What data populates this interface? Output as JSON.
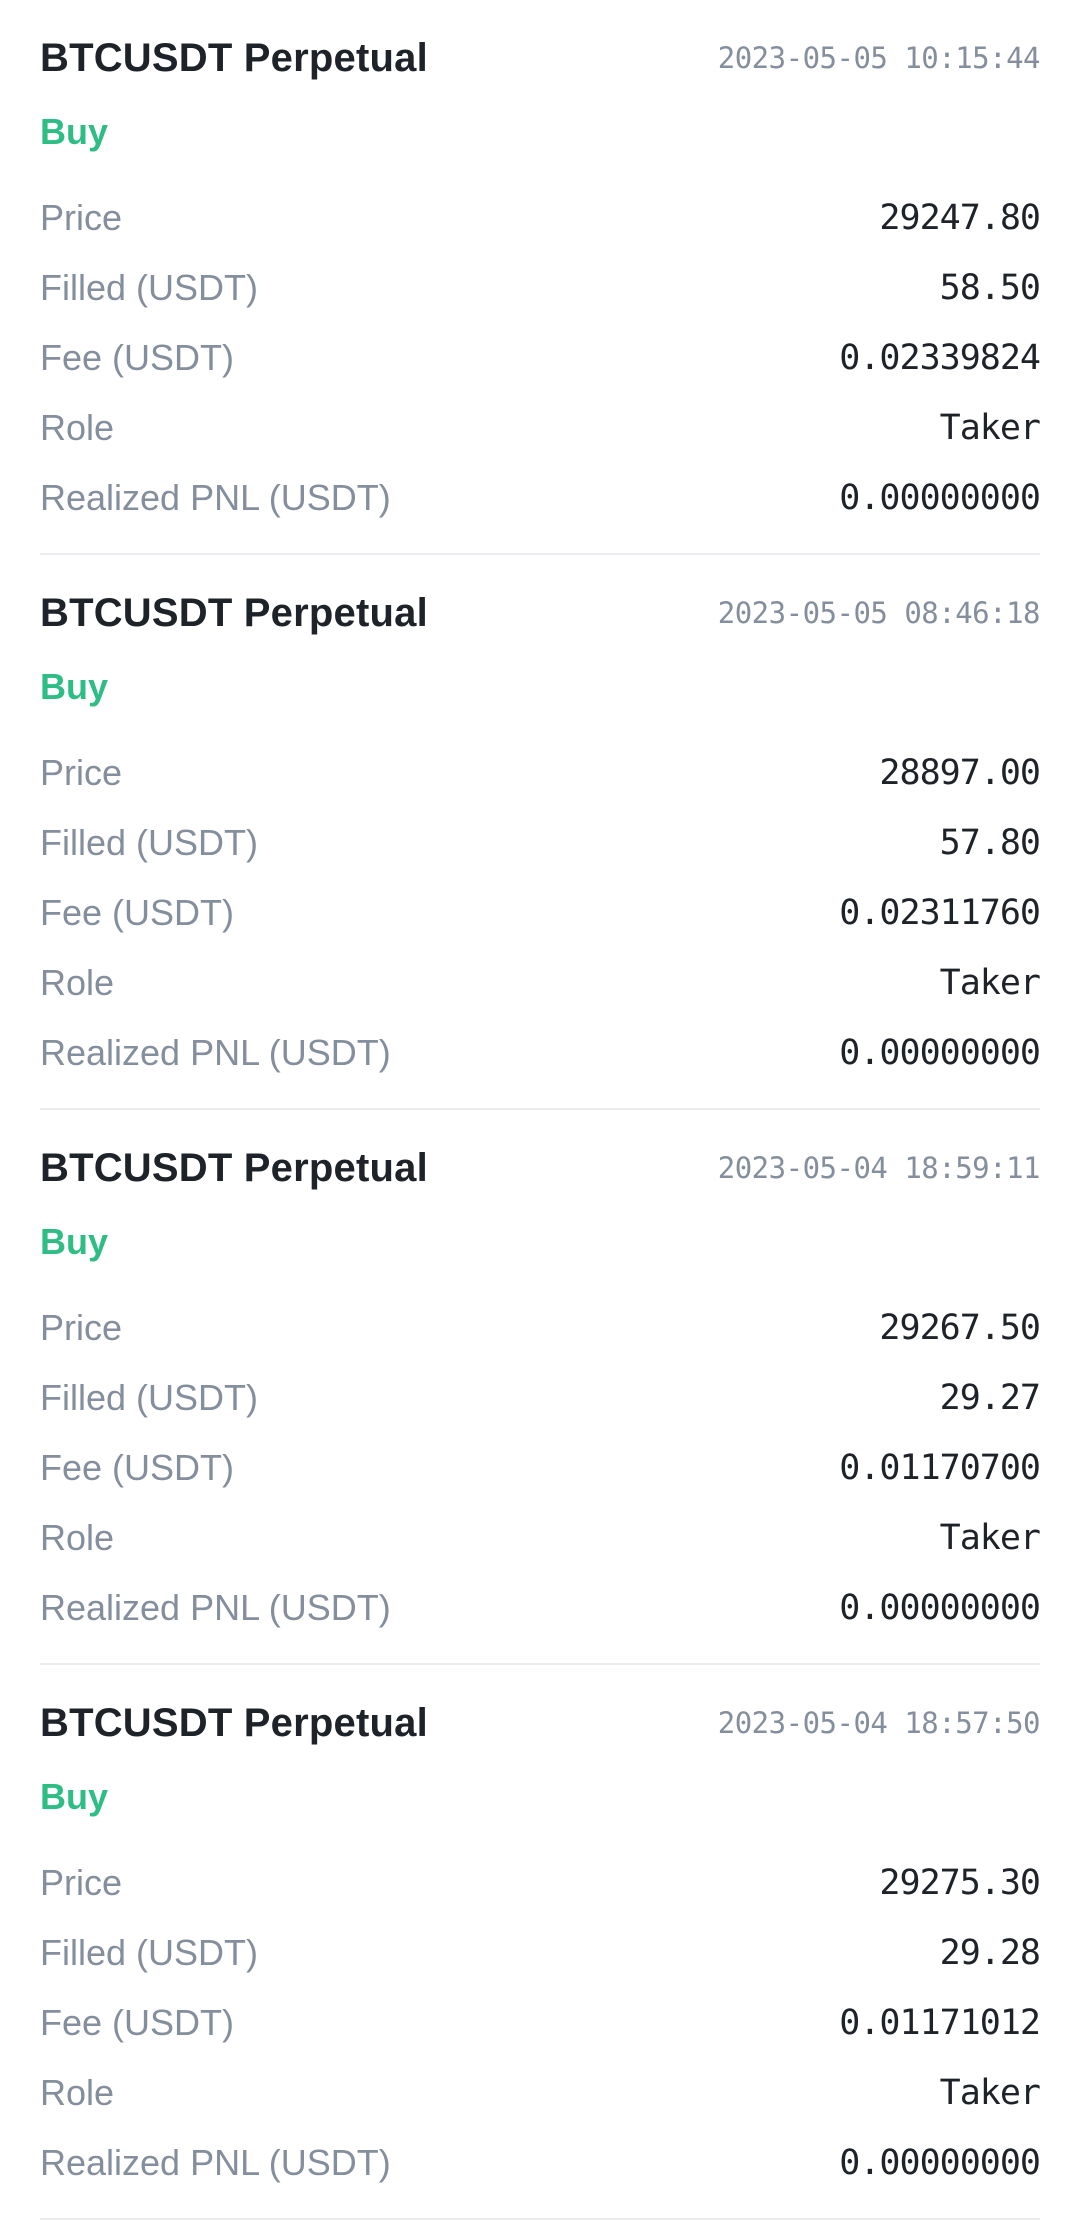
{
  "labels": {
    "price": "Price",
    "filled": "Filled (USDT)",
    "fee": "Fee (USDT)",
    "role": "Role",
    "realized_pnl": "Realized PNL (USDT)"
  },
  "colors": {
    "buy": "#2ebd85",
    "primary_text": "#1e2329",
    "secondary_text": "#848e9c",
    "divider": "#eaecef"
  },
  "trades": [
    {
      "symbol": "BTCUSDT Perpetual",
      "time": "2023-05-05 10:15:44",
      "side": "Buy",
      "price": "29247.80",
      "filled": "58.50",
      "fee": "0.02339824",
      "role": "Taker",
      "realized_pnl": "0.00000000"
    },
    {
      "symbol": "BTCUSDT Perpetual",
      "time": "2023-05-05 08:46:18",
      "side": "Buy",
      "price": "28897.00",
      "filled": "57.80",
      "fee": "0.02311760",
      "role": "Taker",
      "realized_pnl": "0.00000000"
    },
    {
      "symbol": "BTCUSDT Perpetual",
      "time": "2023-05-04 18:59:11",
      "side": "Buy",
      "price": "29267.50",
      "filled": "29.27",
      "fee": "0.01170700",
      "role": "Taker",
      "realized_pnl": "0.00000000"
    },
    {
      "symbol": "BTCUSDT Perpetual",
      "time": "2023-05-04 18:57:50",
      "side": "Buy",
      "price": "29275.30",
      "filled": "29.28",
      "fee": "0.01171012",
      "role": "Taker",
      "realized_pnl": "0.00000000"
    }
  ]
}
